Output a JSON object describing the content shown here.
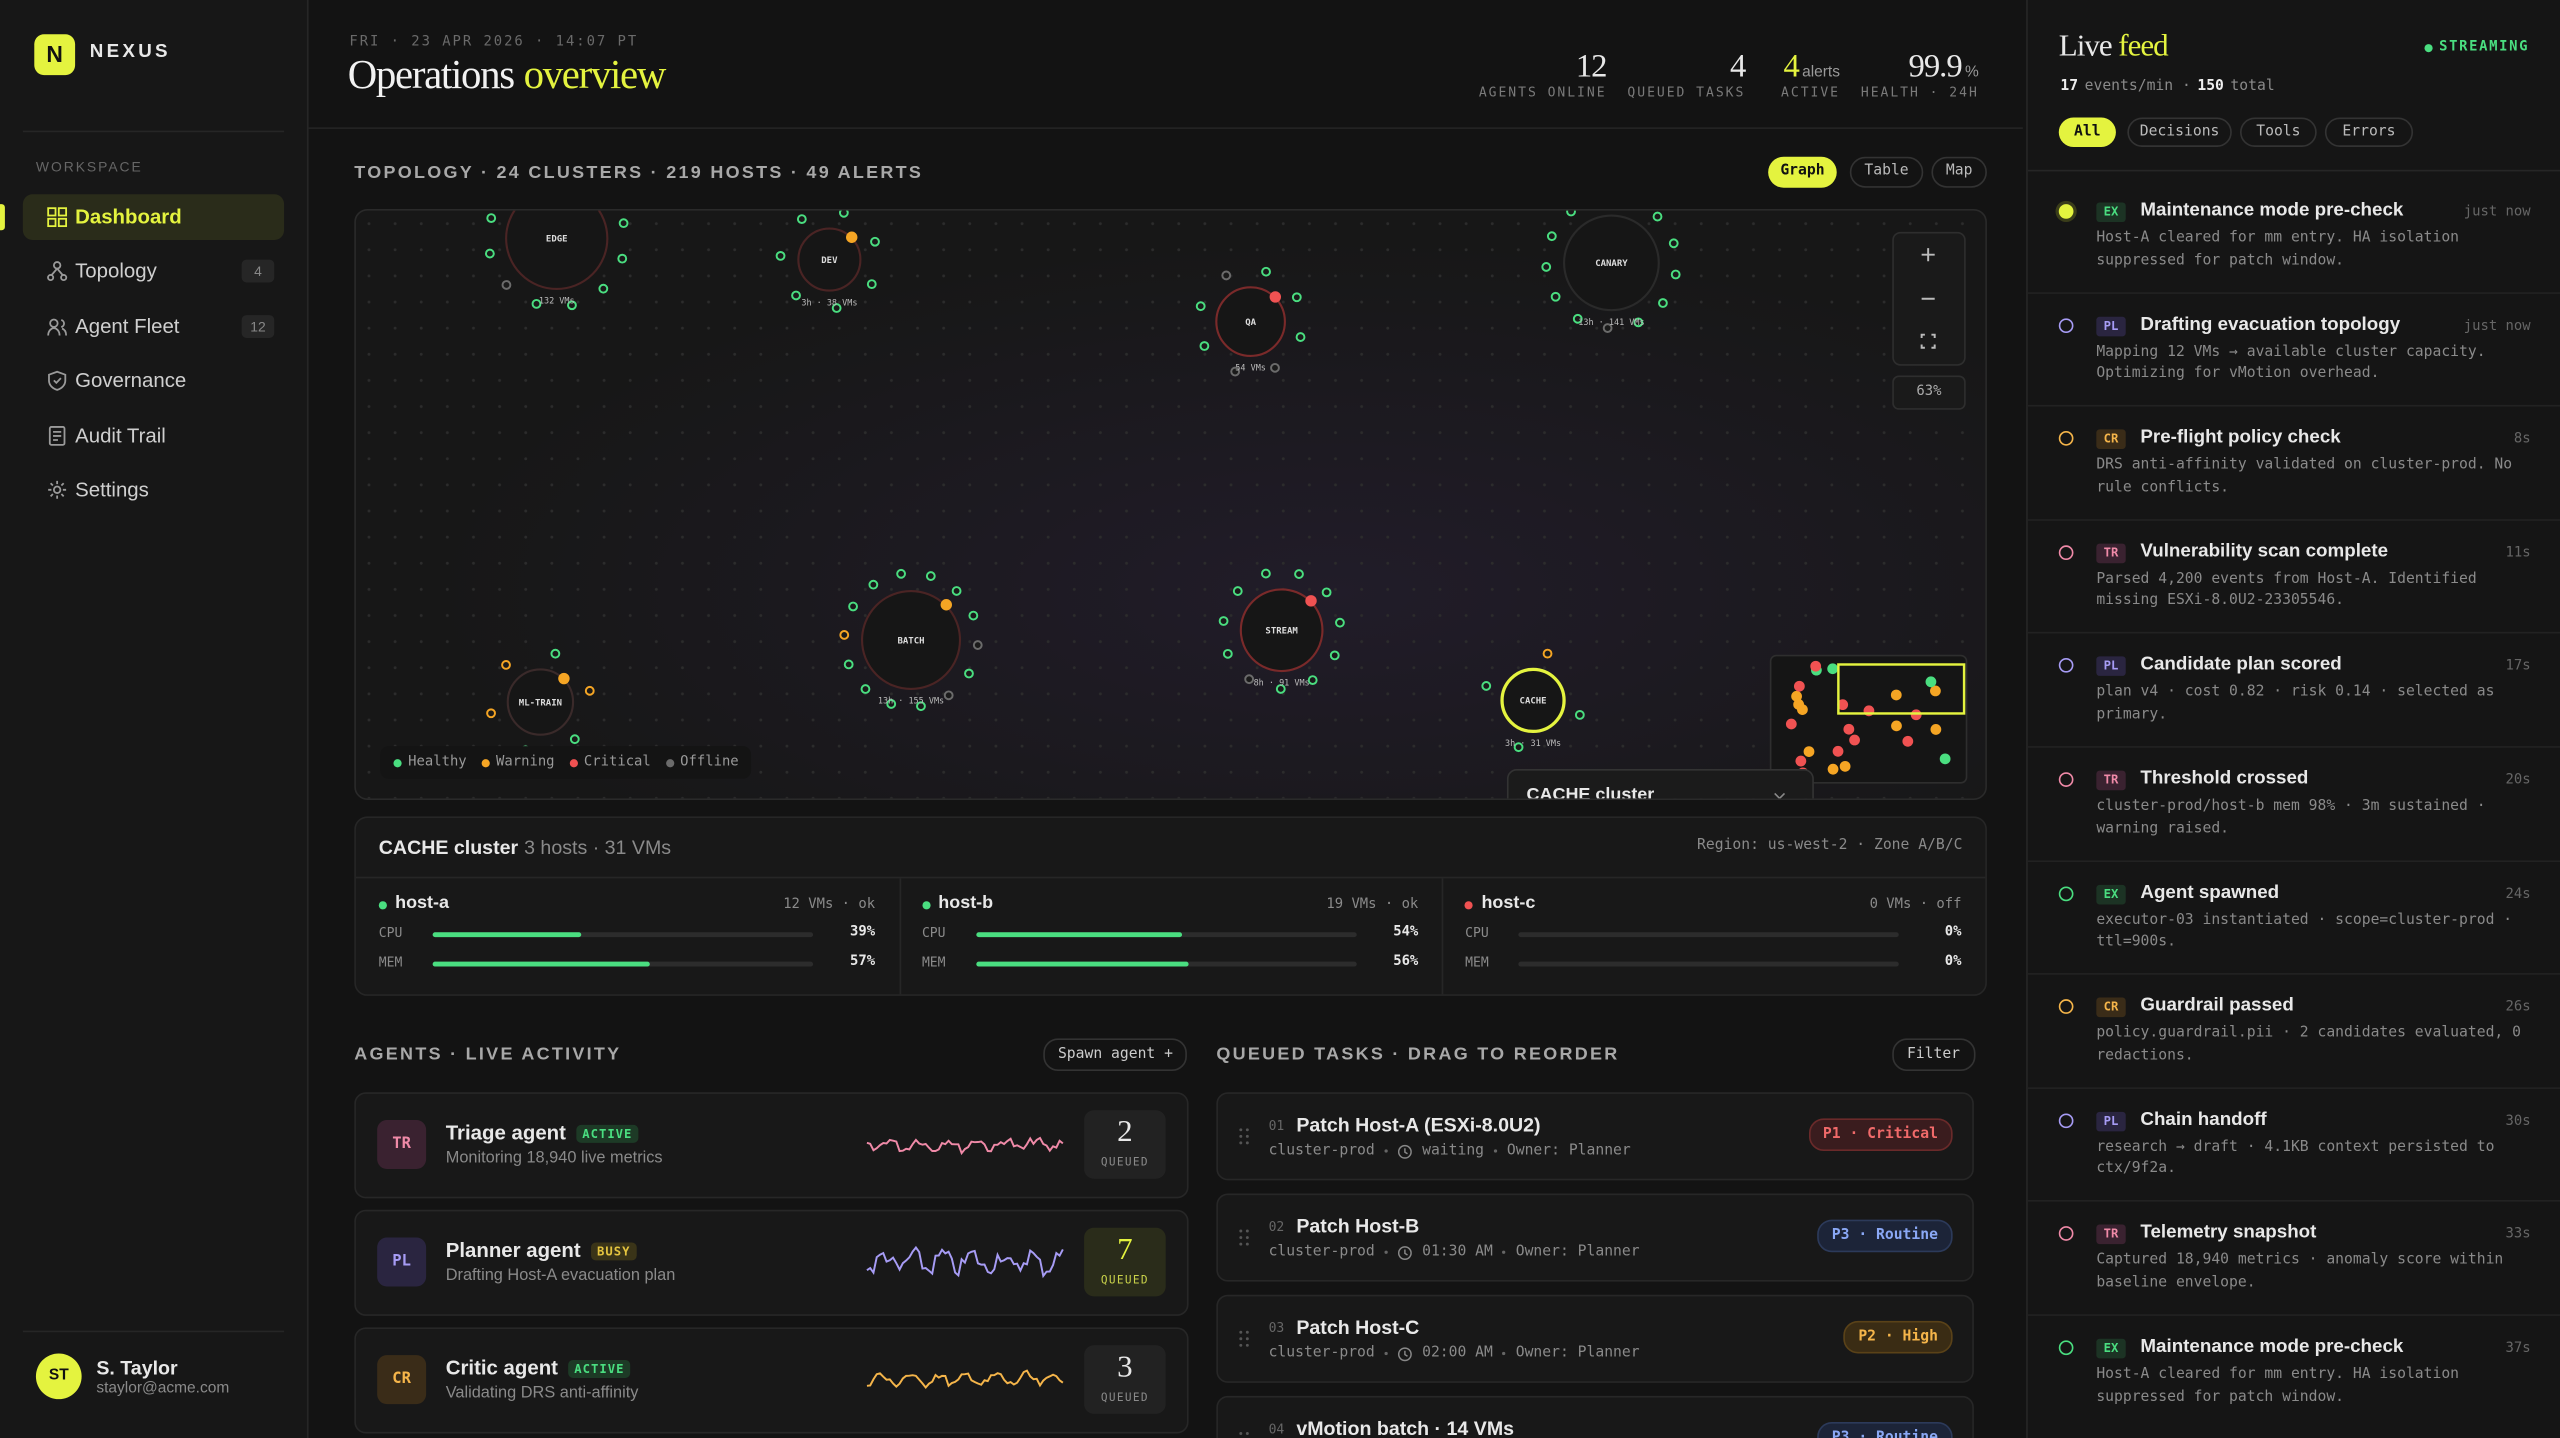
{
  "sidebar": {
    "logo": "N",
    "brand": "NEXUS",
    "section": "WORKSPACE",
    "nav": [
      {
        "label": "Dashboard"
      },
      {
        "label": "Topology",
        "badge": "4"
      },
      {
        "label": "Agent Fleet",
        "badge": "12"
      },
      {
        "label": "Governance"
      },
      {
        "label": "Audit Trail"
      },
      {
        "label": "Settings"
      }
    ],
    "user": {
      "initials": "ST",
      "name": "S. Taylor",
      "email": "staylor@acme.com"
    }
  },
  "header": {
    "date": "FRI · 23 APR 2026 · 14:07 PT",
    "title": "Operations",
    "title_accent": "overview",
    "stats": [
      {
        "value": 12,
        "label": "AGENTS ONLINE"
      },
      {
        "value": 4,
        "label": "QUEUED TASKS"
      },
      {
        "value": 4,
        "unit": "alerts",
        "label": "ACTIVE"
      },
      {
        "value": 99.9,
        "unit": "%",
        "label": "HEALTH · 24H"
      }
    ]
  },
  "topology": {
    "heading": "TOPOLOGY · 24 CLUSTERS · 219 HOSTS · 49 ALERTS",
    "tabs": [
      "Graph",
      "Table",
      "Map"
    ],
    "zoom": "63%",
    "clusters": [
      {
        "name": "EDGE",
        "sub": "132 VMs"
      },
      {
        "name": "DEV",
        "sub": "3h · 38 VMs"
      },
      {
        "name": "QA",
        "sub": "54 VMs"
      },
      {
        "name": "CANARY",
        "sub": "13h · 141 VMs"
      },
      {
        "name": "BATCH",
        "sub": "13h · 155 VMs"
      },
      {
        "name": "STREAM",
        "sub": "8h · 91 VMs"
      },
      {
        "name": "CACHE",
        "sub": "3h · 31 VMs"
      },
      {
        "name": "ML-TRAIN"
      }
    ],
    "legend": [
      {
        "label": "Healthy",
        "color": "#4ade80"
      },
      {
        "label": "Warning",
        "color": "#f5a524"
      },
      {
        "label": "Critical",
        "color": "#f05252"
      },
      {
        "label": "Offline",
        "color": "#6b6b6b"
      }
    ],
    "popup_title": "CACHE cluster"
  },
  "detail": {
    "title": "CACHE cluster",
    "meta": "3 hosts · 31 VMs",
    "region": "Region: us-west-2 · Zone A/B/C",
    "cpu_label": "CPU",
    "mem_label": "MEM",
    "hosts": [
      {
        "name": "host-a",
        "meta": "12 VMs · ok",
        "cpu": {
          "value": 39,
          "label": "39%"
        },
        "mem": {
          "value": 57,
          "label": "57%"
        }
      },
      {
        "name": "host-b",
        "meta": "19 VMs · ok",
        "cpu": {
          "value": 54,
          "label": "54%"
        },
        "mem": {
          "value": 56,
          "label": "56%"
        }
      },
      {
        "name": "host-c",
        "meta": "0 VMs · off",
        "cpu": {
          "value": 0,
          "label": "0%"
        },
        "mem": {
          "value": 0,
          "label": "0%"
        }
      }
    ]
  },
  "agents": {
    "heading": "AGENTS · LIVE ACTIVITY",
    "button": "Spawn agent +",
    "queued_label": "QUEUED",
    "list": [
      {
        "initials": "TR",
        "name": "Triage agent",
        "status": "ACTIVE",
        "desc": "Monitoring 18,940 live metrics",
        "queued": 2
      },
      {
        "initials": "PL",
        "name": "Planner agent",
        "status": "BUSY",
        "desc": "Drafting Host-A evacuation plan",
        "queued": 7
      },
      {
        "initials": "CR",
        "name": "Critic agent",
        "status": "ACTIVE",
        "desc": "Validating DRS anti-affinity",
        "queued": 3
      }
    ]
  },
  "tasks": {
    "heading": "QUEUED TASKS · DRAG TO REORDER",
    "button": "Filter",
    "list": [
      {
        "num": "01",
        "title": "Patch Host-A (ESXi-8.0U2)",
        "cluster": "cluster-prod",
        "time": "waiting",
        "owner": "Owner: Planner",
        "priority": "P1 · Critical"
      },
      {
        "num": "02",
        "title": "Patch Host-B",
        "cluster": "cluster-prod",
        "time": "01:30 AM",
        "owner": "Owner: Planner",
        "priority": "P3 · Routine"
      },
      {
        "num": "03",
        "title": "Patch Host-C",
        "cluster": "cluster-prod",
        "time": "02:00 AM",
        "owner": "Owner: Planner",
        "priority": "P2 · High"
      },
      {
        "num": "04",
        "title": "vMotion batch · 14 VMs",
        "priority": "P3 · Routine"
      }
    ]
  },
  "feed": {
    "title": "Live",
    "title_accent": "feed",
    "streaming": "STREAMING",
    "rate": "17",
    "rate_label": "events/min ·",
    "total": "150",
    "total_label": "total",
    "filters": [
      "All",
      "Decisions",
      "Tools",
      "Errors"
    ],
    "events": [
      {
        "tag": "EX",
        "title": "Maintenance mode pre-check",
        "time": "just now",
        "body": "Host-A cleared for mm entry. HA isolation suppressed for patch window."
      },
      {
        "tag": "PL",
        "title": "Drafting evacuation topology",
        "time": "just now",
        "body": "Mapping 12 VMs → available cluster capacity. Optimizing for vMotion overhead."
      },
      {
        "tag": "CR",
        "title": "Pre-flight policy check",
        "time": "8s",
        "body": "DRS anti-affinity validated on cluster-prod. No rule conflicts."
      },
      {
        "tag": "TR",
        "title": "Vulnerability scan complete",
        "time": "11s",
        "body": "Parsed 4,200 events from Host-A. Identified missing ESXi-8.0U2-23305546."
      },
      {
        "tag": "PL",
        "title": "Candidate plan scored",
        "time": "17s",
        "body": "plan v4 · cost 0.82 · risk 0.14 · selected as primary."
      },
      {
        "tag": "TR",
        "title": "Threshold crossed",
        "time": "20s",
        "body": "cluster-prod/host-b mem 98% · 3m sustained · warning raised."
      },
      {
        "tag": "EX",
        "title": "Agent spawned",
        "time": "24s",
        "body": "executor-03 instantiated · scope=cluster-prod · ttl=900s."
      },
      {
        "tag": "CR",
        "title": "Guardrail passed",
        "time": "26s",
        "body": "policy.guardrail.pii · 2 candidates evaluated, 0 redactions."
      },
      {
        "tag": "PL",
        "title": "Chain handoff",
        "time": "30s",
        "body": "research → draft · 4.1KB context persisted to ctx/9f2a."
      },
      {
        "tag": "TR",
        "title": "Telemetry snapshot",
        "time": "33s",
        "body": "Captured 18,940 metrics · anomaly score within baseline envelope."
      },
      {
        "tag": "EX",
        "title": "Maintenance mode pre-check",
        "time": "37s",
        "body": "Host-A cleared for mm entry. HA isolation suppressed for patch window."
      }
    ]
  }
}
